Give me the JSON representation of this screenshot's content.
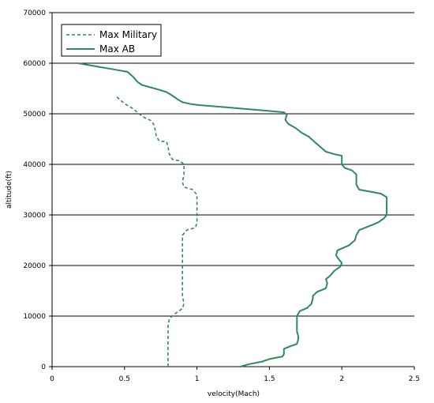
{
  "chart_data": {
    "type": "line",
    "xlabel": "velocity(Mach)",
    "ylabel": "altitude(ft)",
    "xlim": [
      0,
      2.5
    ],
    "ylim": [
      0,
      70000
    ],
    "x_ticks": [
      0,
      0.5,
      1,
      1.5,
      2,
      2.5
    ],
    "x_tick_labels": [
      "0",
      "0.5",
      "1",
      "1.5",
      "2",
      "2.5"
    ],
    "y_ticks": [
      0,
      10000,
      20000,
      30000,
      40000,
      50000,
      60000,
      70000
    ],
    "y_tick_labels": [
      "0",
      "10000",
      "20000",
      "30000",
      "40000",
      "50000",
      "60000",
      "70000"
    ],
    "grid": "horizontal",
    "legend_position": "top-left",
    "series": [
      {
        "name": "Max Military",
        "style": "dashed",
        "color": "#2e8b57",
        "points": [
          [
            0.8,
            0
          ],
          [
            0.8,
            2000
          ],
          [
            0.8,
            4000
          ],
          [
            0.8,
            6000
          ],
          [
            0.8,
            8000
          ],
          [
            0.81,
            9500
          ],
          [
            0.85,
            10500
          ],
          [
            0.9,
            11500
          ],
          [
            0.91,
            12500
          ],
          [
            0.9,
            14000
          ],
          [
            0.9,
            16000
          ],
          [
            0.9,
            18000
          ],
          [
            0.9,
            20000
          ],
          [
            0.9,
            22000
          ],
          [
            0.9,
            24000
          ],
          [
            0.9,
            26000
          ],
          [
            0.93,
            27000
          ],
          [
            0.99,
            27500
          ],
          [
            1.0,
            28500
          ],
          [
            1.0,
            30000
          ],
          [
            1.0,
            32000
          ],
          [
            1.0,
            34000
          ],
          [
            0.97,
            35000
          ],
          [
            0.91,
            35500
          ],
          [
            0.9,
            36500
          ],
          [
            0.91,
            38000
          ],
          [
            0.91,
            40000
          ],
          [
            0.88,
            40700
          ],
          [
            0.83,
            41000
          ],
          [
            0.81,
            42000
          ],
          [
            0.8,
            43500
          ],
          [
            0.79,
            44500
          ],
          [
            0.74,
            44600
          ],
          [
            0.72,
            45500
          ],
          [
            0.71,
            47000
          ],
          [
            0.7,
            48000
          ],
          [
            0.68,
            48700
          ],
          [
            0.64,
            49200
          ],
          [
            0.6,
            50000
          ],
          [
            0.56,
            51000
          ],
          [
            0.5,
            52000
          ],
          [
            0.44,
            53500
          ]
        ]
      },
      {
        "name": "Max AB",
        "style": "solid",
        "color": "#2e8b57",
        "points": [
          [
            1.3,
            0
          ],
          [
            1.36,
            500
          ],
          [
            1.45,
            1000
          ],
          [
            1.5,
            1500
          ],
          [
            1.59,
            2000
          ],
          [
            1.6,
            2500
          ],
          [
            1.6,
            3500
          ],
          [
            1.64,
            4000
          ],
          [
            1.69,
            4500
          ],
          [
            1.7,
            5500
          ],
          [
            1.7,
            6000
          ],
          [
            1.69,
            7000
          ],
          [
            1.69,
            8000
          ],
          [
            1.69,
            9000
          ],
          [
            1.69,
            10000
          ],
          [
            1.71,
            11000
          ],
          [
            1.76,
            11600
          ],
          [
            1.79,
            12400
          ],
          [
            1.8,
            13500
          ],
          [
            1.8,
            14000
          ],
          [
            1.83,
            14800
          ],
          [
            1.89,
            15500
          ],
          [
            1.9,
            16500
          ],
          [
            1.89,
            17300
          ],
          [
            1.92,
            18000
          ],
          [
            1.95,
            19000
          ],
          [
            1.99,
            19800
          ],
          [
            2.0,
            20500
          ],
          [
            1.98,
            21200
          ],
          [
            1.96,
            22000
          ],
          [
            1.97,
            23000
          ],
          [
            2.05,
            24000
          ],
          [
            2.09,
            25000
          ],
          [
            2.1,
            26000
          ],
          [
            2.12,
            27000
          ],
          [
            2.19,
            27800
          ],
          [
            2.25,
            28500
          ],
          [
            2.29,
            29300
          ],
          [
            2.31,
            30000
          ],
          [
            2.31,
            32000
          ],
          [
            2.31,
            33500
          ],
          [
            2.27,
            34200
          ],
          [
            2.2,
            34600
          ],
          [
            2.12,
            35000
          ],
          [
            2.1,
            36000
          ],
          [
            2.1,
            37000
          ],
          [
            2.1,
            38000
          ],
          [
            2.07,
            38800
          ],
          [
            2.02,
            39300
          ],
          [
            2.0,
            40000
          ],
          [
            2.0,
            41000
          ],
          [
            2.0,
            41700
          ],
          [
            1.95,
            42000
          ],
          [
            1.89,
            42500
          ],
          [
            1.85,
            43500
          ],
          [
            1.81,
            44500
          ],
          [
            1.77,
            45500
          ],
          [
            1.72,
            46300
          ],
          [
            1.68,
            47200
          ],
          [
            1.63,
            48000
          ],
          [
            1.61,
            48800
          ],
          [
            1.62,
            49800
          ],
          [
            1.6,
            50300
          ],
          [
            1.49,
            50600
          ],
          [
            1.36,
            50900
          ],
          [
            1.2,
            51300
          ],
          [
            1.02,
            51700
          ],
          [
            0.96,
            51900
          ],
          [
            0.9,
            52300
          ],
          [
            0.87,
            52800
          ],
          [
            0.83,
            53600
          ],
          [
            0.79,
            54300
          ],
          [
            0.72,
            54900
          ],
          [
            0.62,
            55700
          ],
          [
            0.59,
            56300
          ],
          [
            0.56,
            57300
          ],
          [
            0.52,
            58300
          ],
          [
            0.44,
            58700
          ],
          [
            0.32,
            59300
          ],
          [
            0.18,
            60000
          ]
        ]
      }
    ]
  }
}
